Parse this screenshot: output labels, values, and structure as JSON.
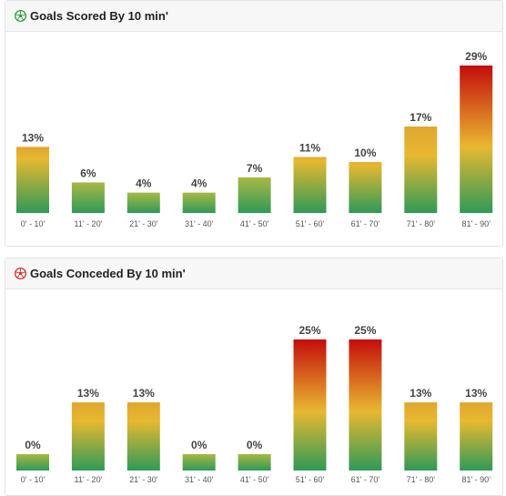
{
  "colors": {
    "low": "#2f9a57",
    "mid": "#e8b830",
    "high": "#c40d0c",
    "scored_icon": "#2e9e3e",
    "conceded_icon": "#d8312a"
  },
  "scored": {
    "title": "Goals Scored By 10 min'",
    "icon": "soccer-ball-icon"
  },
  "conceded": {
    "title": "Goals Conceded By 10 min'",
    "icon": "soccer-ball-icon"
  },
  "chart_data": [
    {
      "type": "bar",
      "title": "Goals Scored By 10 min'",
      "categories": [
        "0' - 10'",
        "11' - 20'",
        "21' - 30'",
        "31' - 40'",
        "41' - 50'",
        "51' - 60'",
        "61' - 70'",
        "71' - 80'",
        "81' - 90'"
      ],
      "values": [
        13,
        6,
        4,
        4,
        7,
        11,
        10,
        17,
        29
      ],
      "value_labels": [
        "13%",
        "6%",
        "4%",
        "4%",
        "7%",
        "11%",
        "10%",
        "17%",
        "29%"
      ],
      "ylim": [
        0,
        29
      ],
      "grid": false
    },
    {
      "type": "bar",
      "title": "Goals Conceded By 10 min'",
      "categories": [
        "0' - 10'",
        "11' - 20'",
        "21' - 30'",
        "31' - 40'",
        "41' - 50'",
        "51' - 60'",
        "61' - 70'",
        "71' - 80'",
        "81' - 90'"
      ],
      "values": [
        0,
        13,
        13,
        0,
        0,
        25,
        25,
        13,
        13
      ],
      "value_labels": [
        "0%",
        "13%",
        "13%",
        "0%",
        "0%",
        "25%",
        "25%",
        "13%",
        "13%"
      ],
      "ylim": [
        0,
        25
      ],
      "grid": false
    }
  ]
}
